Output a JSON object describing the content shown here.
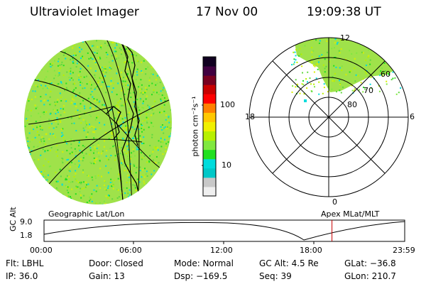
{
  "header": {
    "instrument": "Ultraviolet Imager",
    "date": "17 Nov 00",
    "time": "19:09:38 UT"
  },
  "colorbar": {
    "unit_label": "photon cm⁻²s⁻¹",
    "ticks": [
      "100",
      "10"
    ],
    "colors": [
      "#efefef",
      "#c8c8c8",
      "#00c8c8",
      "#00dcdc",
      "#20e020",
      "#80e840",
      "#b8f000",
      "#f0f000",
      "#ffc800",
      "#ff8000",
      "#ff0000",
      "#c80000",
      "#780020",
      "#400040",
      "#100020"
    ]
  },
  "polar": {
    "hours": {
      "top": "12",
      "bottom": "0",
      "left": "18",
      "right": "6"
    },
    "latitudes": [
      "60",
      "70",
      "80"
    ]
  },
  "map_labels": {
    "left": "Geographic Lat/Lon",
    "right": "Apex MLat/MLT"
  },
  "altitude_plot": {
    "ylabel": "GC Alt",
    "yticks": [
      "9.0",
      "1.8"
    ],
    "xticks": [
      "00:00",
      "06:00",
      "12:00",
      "18:00",
      "23:59"
    ],
    "current_time_hours": 19.16,
    "marker_color": "#c80000"
  },
  "info_rows": [
    {
      "c1": "Flt: LBHL",
      "c2": "Door: Closed",
      "c3": "Mode: Normal",
      "c4": "GC Alt: 4.5 Re",
      "c5": "GLat: −36.8"
    },
    {
      "c1": "IP: 36.0",
      "c2": "Gain: 13",
      "c3": "Dsp: −169.5",
      "c4": "Seq: 39",
      "c5": "GLon: 210.7"
    }
  ]
}
